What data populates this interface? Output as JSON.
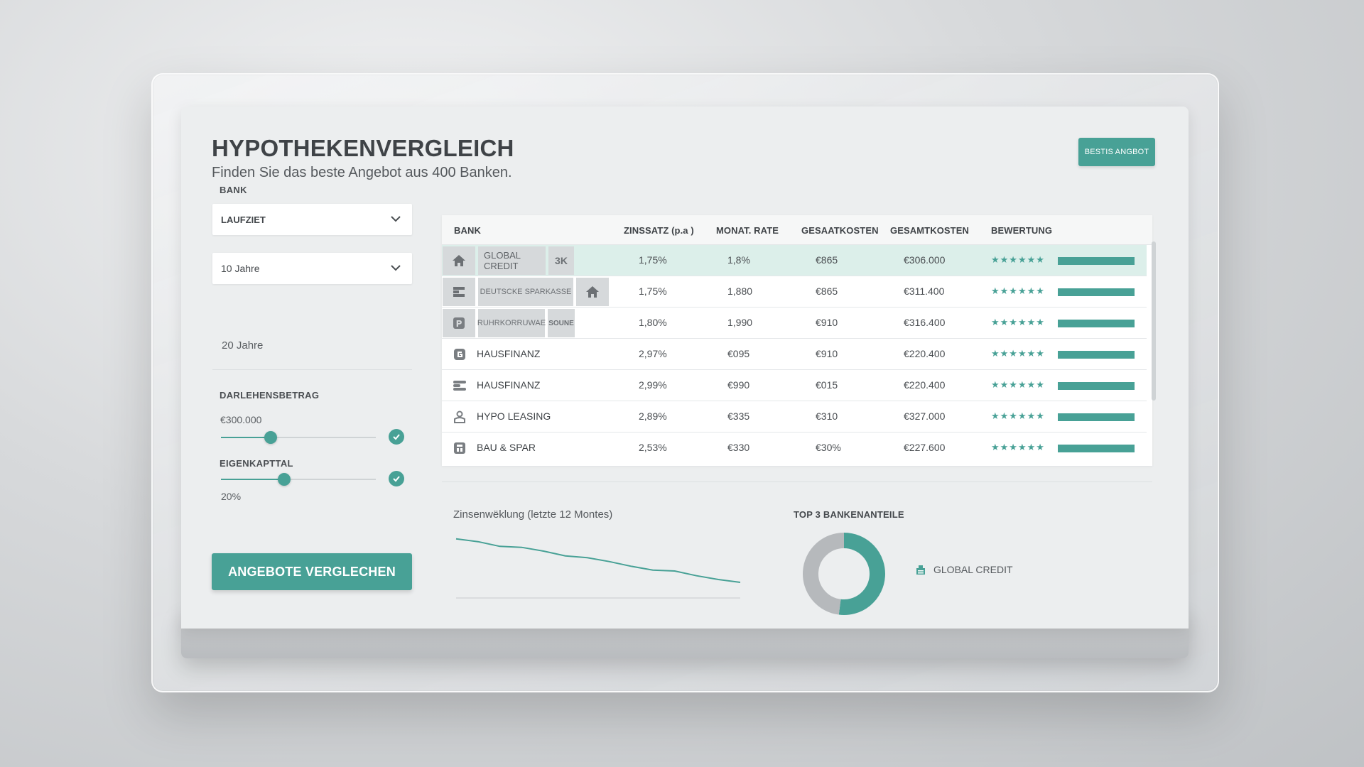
{
  "header": {
    "title": "HYPOTHEKENVERGLEICH",
    "subtitle": "Finden Sie das beste Angebot aus 400 Banken.",
    "best_offer_button": "BESTIS ANGBOT"
  },
  "filters": {
    "bank_label": "BANK",
    "laufzeit_select": "LAUFZIET",
    "term_select": "10 Jahre",
    "term_option_2": "20 Jahre",
    "loan_label": "DARLEHENSBETRAG",
    "loan_value": "€300.000",
    "loan_slider_fraction": 0.32,
    "equity_label": "EIGENKAPTTAL",
    "equity_value": "20%",
    "equity_slider_fraction": 0.41,
    "compare_button": "ANGEBOTE VERGLECHEN"
  },
  "table": {
    "headers": [
      "BANK",
      "ZINSSATZ (p.a )",
      "MONAT. RATE",
      "GESAATKOSTEN",
      "GESAMTKOSTEN",
      "BEWERTUNG"
    ],
    "rows": [
      {
        "bank": "GLOBAL CREDIT",
        "logo_text": "3K",
        "rate": "1,75%",
        "monthly": "1,8%",
        "costs": "€865",
        "total": "€306.000",
        "stars": "★★★★★★",
        "rating": 1.0,
        "icon": "house-icon",
        "highlight": true
      },
      {
        "bank": "DEUTSCKE SPARKASSE",
        "logo_text": "",
        "rate": "1,75%",
        "monthly": "1,880",
        "costs": "€865",
        "total": "€311.400",
        "stars": "★★★★★★",
        "rating": 1.0,
        "icon": "sparkasse-icon",
        "highlight": false
      },
      {
        "bank": "RUHRKORRUWAE",
        "logo_text": "SOUNE",
        "rate": "1,80%",
        "monthly": "1,990",
        "costs": "€910",
        "total": "€316.400",
        "stars": "★★★★★★",
        "rating": 1.0,
        "icon": "bank-logo-icon",
        "highlight": false
      },
      {
        "bank": "HAUSFINANZ",
        "logo_text": "",
        "rate": "2,97%",
        "monthly": "€095",
        "costs": "€910",
        "total": "€220.400",
        "stars": "★★★★★★",
        "rating": 1.0,
        "icon": "g-logo-icon",
        "highlight": false
      },
      {
        "bank": "HAUSFINANZ",
        "logo_text": "",
        "rate": "2,99%",
        "monthly": "€990",
        "costs": "€015",
        "total": "€220.400",
        "stars": "★★★★★★",
        "rating": 1.0,
        "icon": "s-logo-icon",
        "highlight": false
      },
      {
        "bank": "HYPO LEASING",
        "logo_text": "",
        "rate": "2,89%",
        "monthly": "€335",
        "costs": "€310",
        "total": "€327.000",
        "stars": "★★★★★★",
        "rating": 1.0,
        "icon": "person-icon",
        "highlight": false
      },
      {
        "bank": "BAU & SPAR",
        "logo_text": "",
        "rate": "2,53%",
        "monthly": "€330",
        "costs": "€30%",
        "total": "€227.600",
        "stars": "★★★★★★",
        "rating": 1.0,
        "icon": "building-icon",
        "highlight": false
      }
    ]
  },
  "trend_chart": {
    "title": "Zinsenwëklung (letzte 12 Montes)"
  },
  "donut": {
    "title": "TOP 3 BANKENANTEILE",
    "legend_label": "GLOBAL CREDIT"
  },
  "chart_data": [
    {
      "type": "line",
      "title": "Zinsenwëklung (letzte 12 Montes)",
      "series": [
        {
          "values": [
            4.6,
            4.45,
            4.2,
            4.15,
            3.95,
            3.7,
            3.6,
            3.4,
            3.15,
            2.95,
            2.9,
            2.65,
            2.45,
            2.3
          ]
        }
      ],
      "ylim": [
        2,
        5
      ],
      "color": "#48a196"
    },
    {
      "type": "pie",
      "title": "TOP 3 BANKENANTEILE",
      "slices": [
        {
          "label": "GLOBAL CREDIT",
          "value": 52,
          "color": "#48a196"
        },
        {
          "label": "",
          "value": 48,
          "color": "#b6b9bc"
        }
      ]
    }
  ],
  "colors": {
    "accent": "#48a196",
    "highlight_row": "#dcefea"
  }
}
